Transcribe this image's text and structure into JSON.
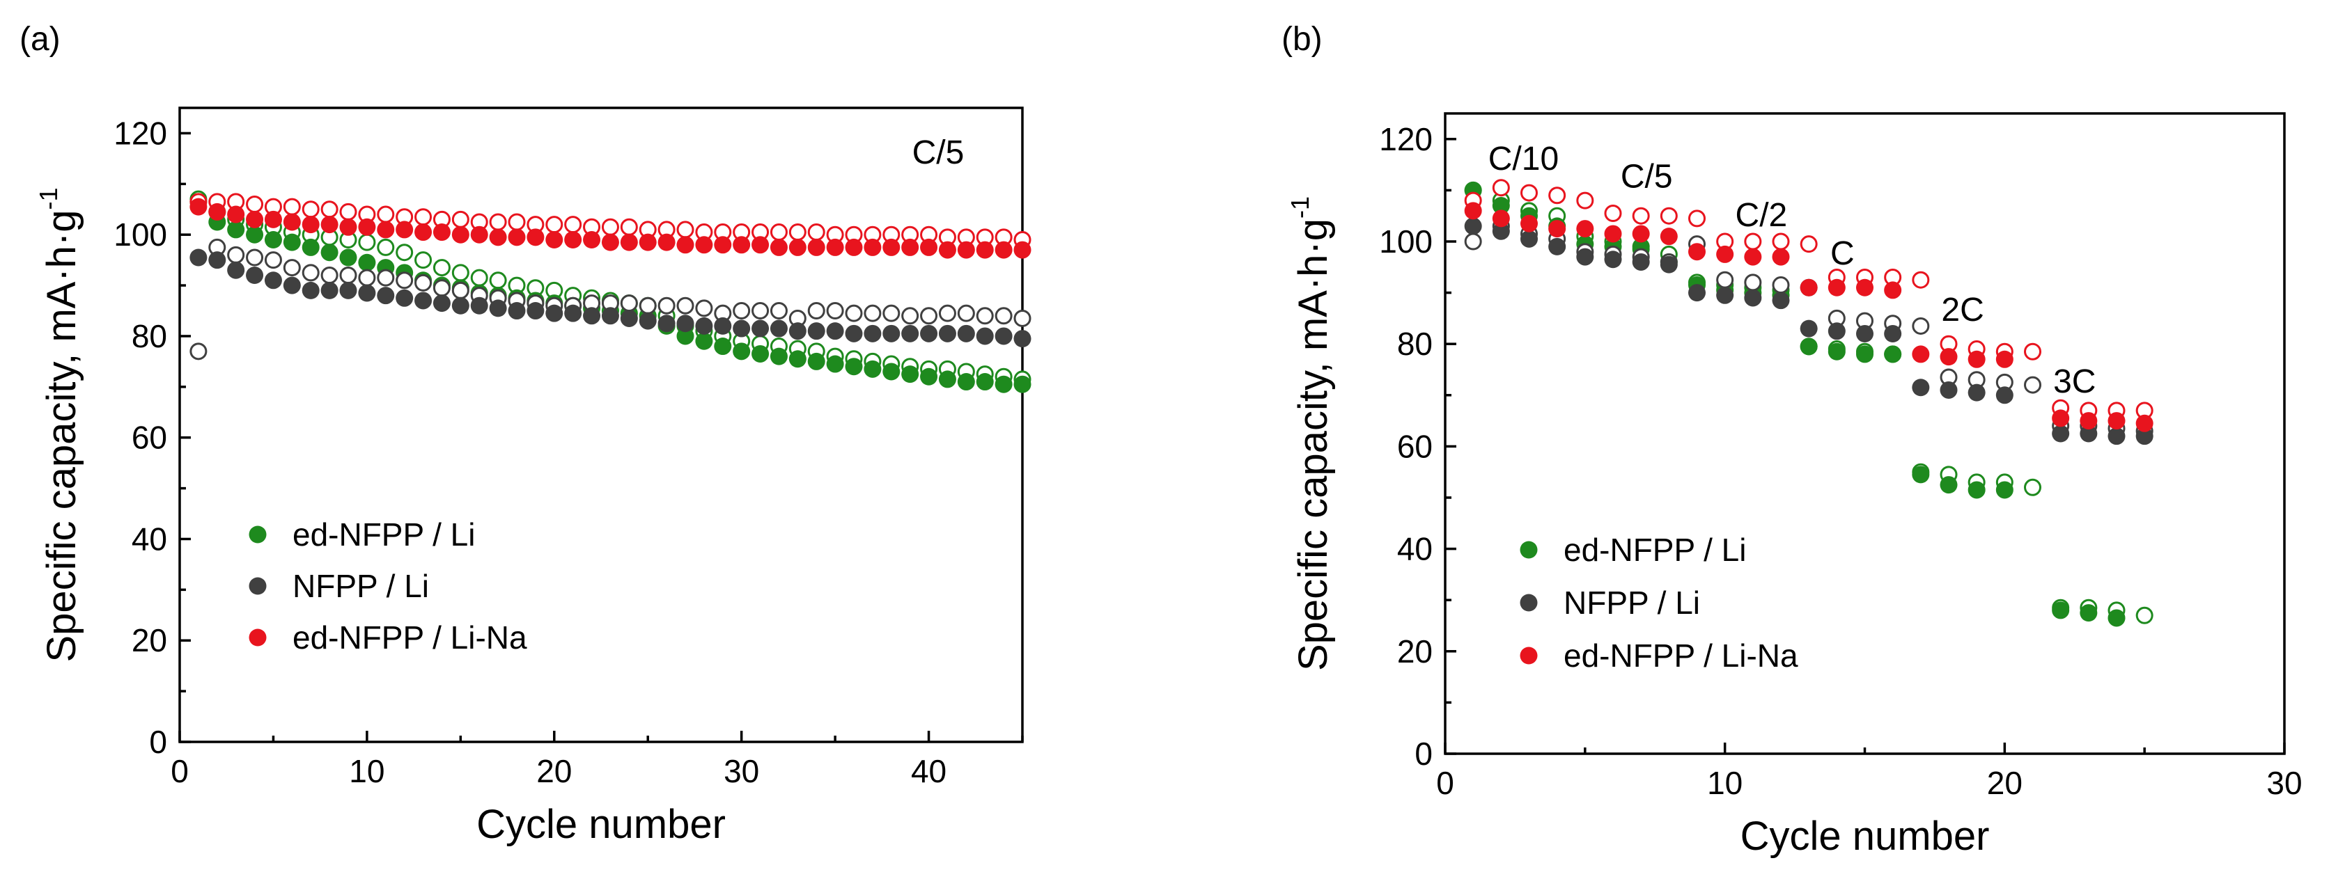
{
  "chart_data": [
    {
      "type": "scatter",
      "panel_label": "(a)",
      "xlabel": "Cycle number",
      "ylabel": "Specific capacity, mA·h·g",
      "ylabel_superscript": "-1",
      "xlim": [
        0,
        45
      ],
      "ylim": [
        0,
        125
      ],
      "xticks": [
        0,
        10,
        20,
        30,
        40
      ],
      "yticks": [
        0,
        20,
        40,
        60,
        80,
        100,
        120
      ],
      "annotations": [
        {
          "text": "C/5",
          "x": 40.5,
          "y": 114
        }
      ],
      "legend": [
        "ed-NFPP / Li",
        "NFPP / Li",
        "ed-NFPP / Li-Na"
      ],
      "series": [
        {
          "name": "ed-NFPP / Li",
          "color": "#1e8a1e",
          "charge": [
            107,
            104.5,
            103,
            102,
            101.5,
            100.5,
            100,
            99.5,
            99,
            98.5,
            97.5,
            96.5,
            95,
            93.5,
            92.5,
            91.5,
            91,
            90,
            89.5,
            89,
            88,
            87.5,
            87,
            86.5,
            86,
            84,
            82,
            81,
            80,
            79,
            78.5,
            78,
            77.5,
            77,
            76,
            75.5,
            75,
            74.5,
            74,
            73.5,
            73.5,
            73,
            72.5,
            72,
            71.5
          ],
          "discharge": [
            106.5,
            102.5,
            101,
            100,
            99,
            98.5,
            97.5,
            96.5,
            95.5,
            94.5,
            93.5,
            92.5,
            91,
            90,
            89.5,
            88.5,
            88,
            87.5,
            87,
            86.5,
            86,
            85.5,
            85,
            84.5,
            84,
            82,
            80,
            79,
            78,
            77,
            76.5,
            76,
            75.5,
            75,
            74.5,
            74,
            73.5,
            73,
            72.5,
            72,
            71.5,
            71,
            71,
            70.5,
            70.5
          ]
        },
        {
          "name": "NFPP / Li",
          "color": "#404040",
          "charge": [
            77,
            97.5,
            96,
            95.5,
            95,
            93.5,
            92.5,
            92,
            92,
            91.5,
            91.5,
            91,
            90.5,
            89.5,
            89,
            88,
            87.5,
            87,
            86.5,
            86,
            86,
            86.5,
            86.5,
            86.5,
            86,
            86,
            86,
            85.5,
            84.5,
            85,
            85,
            85,
            83.5,
            85,
            85,
            84.5,
            84.5,
            84.5,
            84,
            84,
            84.5,
            84.5,
            84,
            84,
            83.5
          ],
          "discharge": [
            95.5,
            95,
            93,
            92,
            91,
            90,
            89,
            89,
            89,
            88.5,
            88,
            87.5,
            87,
            86.5,
            86,
            86,
            85.5,
            85,
            85,
            84.5,
            84.5,
            84,
            84,
            83.5,
            83,
            82.5,
            82.5,
            82,
            82,
            81.5,
            81.5,
            81.5,
            81,
            81,
            81,
            80.5,
            80.5,
            80.5,
            80.5,
            80.5,
            80.5,
            80.5,
            80,
            80,
            79.5
          ]
        },
        {
          "name": "ed-NFPP / Li-Na",
          "color": "#e8141e",
          "charge": [
            106.5,
            106.5,
            106.5,
            106,
            105.5,
            105.5,
            105,
            105,
            104.5,
            104,
            104,
            103.5,
            103.5,
            103,
            103,
            102.5,
            102.5,
            102.5,
            102,
            102,
            102,
            101.5,
            101.5,
            101.5,
            101,
            101,
            101,
            100.5,
            100.5,
            100.5,
            100.5,
            100.5,
            100.5,
            100.5,
            100,
            100,
            100,
            100,
            100,
            100,
            99.5,
            99.5,
            99.5,
            99.5,
            99
          ],
          "discharge": [
            105.5,
            104.5,
            104,
            103,
            103,
            102.5,
            102,
            102,
            101.5,
            101.5,
            101,
            101,
            100.5,
            100.5,
            100,
            100,
            99.5,
            99.5,
            99.5,
            99,
            99,
            99,
            98.5,
            98.5,
            98.5,
            98.5,
            98,
            98,
            98,
            98,
            98,
            97.5,
            97.5,
            97.5,
            97.5,
            97.5,
            97.5,
            97.5,
            97.5,
            97.5,
            97,
            97,
            97,
            97,
            97
          ]
        }
      ]
    },
    {
      "type": "scatter",
      "panel_label": "(b)",
      "xlabel": "Cycle number",
      "ylabel": "Specific capacity, mA·h·g",
      "ylabel_superscript": "-1",
      "xlim": [
        0,
        30
      ],
      "ylim": [
        0,
        125
      ],
      "xticks": [
        0,
        10,
        20,
        30
      ],
      "yticks": [
        0,
        20,
        40,
        60,
        80,
        100,
        120
      ],
      "annotations": [
        {
          "text": "C/10",
          "x": 2.8,
          "y": 114
        },
        {
          "text": "C/5",
          "x": 7.2,
          "y": 110.5
        },
        {
          "text": "C/2",
          "x": 11.3,
          "y": 103
        },
        {
          "text": "C",
          "x": 14.2,
          "y": 95.5
        },
        {
          "text": "2C",
          "x": 18.5,
          "y": 84.5
        },
        {
          "text": "3C",
          "x": 22.5,
          "y": 70.5
        }
      ],
      "legend": [
        "ed-NFPP / Li",
        "NFPP / Li",
        "ed-NFPP / Li-Na"
      ],
      "series": [
        {
          "name": "ed-NFPP / Li",
          "color": "#1e8a1e",
          "charge": [
            110,
            108,
            106,
            105,
            101,
            100,
            99,
            97.5,
            92,
            91.5,
            91,
            90.5,
            79.5,
            79,
            78.5,
            78,
            55,
            54.5,
            53,
            53,
            52,
            28.5,
            28.5,
            28,
            27
          ],
          "discharge": [
            110,
            107,
            105,
            103,
            99.5,
            99,
            98.5,
            96,
            91.5,
            90.5,
            90,
            89.5,
            79.5,
            78.5,
            78,
            78,
            54.5,
            52.5,
            51.5,
            51.5,
            null,
            28,
            27.5,
            26.5,
            null
          ]
        },
        {
          "name": "NFPP / Li",
          "color": "#404040",
          "charge": [
            100,
            103,
            101.5,
            100.5,
            98,
            97.5,
            97,
            96,
            99.5,
            92.5,
            92,
            91.5,
            91,
            85,
            84.5,
            84,
            83.5,
            73.5,
            73,
            72.5,
            72,
            64,
            64,
            63.5,
            63
          ],
          "discharge": [
            103,
            102,
            100.5,
            99,
            97,
            96.5,
            96,
            95.5,
            90,
            89.5,
            89,
            88.5,
            83,
            82.5,
            82,
            82,
            71.5,
            71,
            70.5,
            70,
            null,
            62.5,
            62.5,
            62,
            62
          ]
        },
        {
          "name": "ed-NFPP / Li-Na",
          "color": "#e8141e",
          "charge": [
            108,
            110.5,
            109.5,
            109,
            108,
            105.5,
            105,
            105,
            104.5,
            100,
            100,
            100,
            99.5,
            93,
            93,
            93,
            92.5,
            80,
            79,
            78.5,
            78.5,
            67.5,
            67,
            67,
            67
          ],
          "discharge": [
            106,
            104.5,
            103.5,
            102.5,
            102.5,
            101.5,
            101.5,
            101,
            98,
            97.5,
            97,
            97,
            91,
            91,
            91,
            90.5,
            78,
            77.5,
            77,
            77,
            null,
            65.5,
            65,
            65,
            64.5
          ]
        }
      ]
    }
  ]
}
